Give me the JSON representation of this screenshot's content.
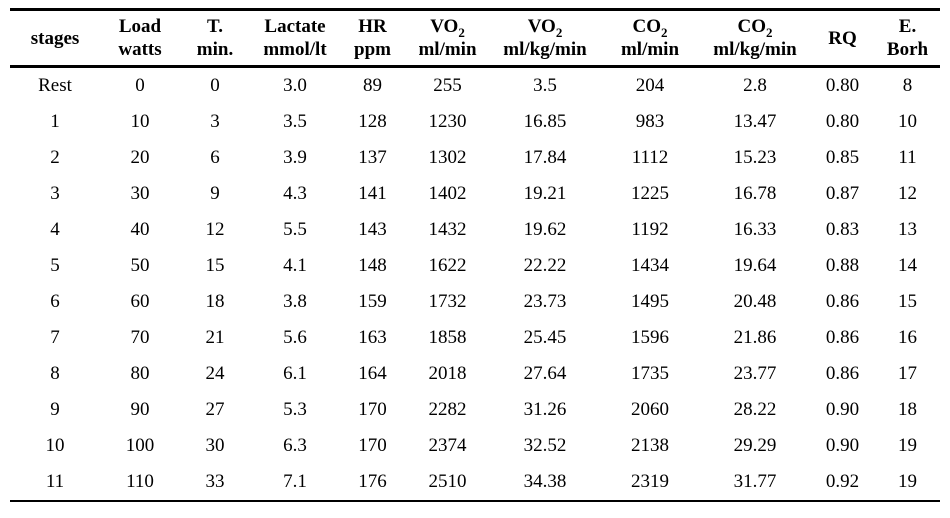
{
  "table": {
    "columns": [
      {
        "line1": "stages",
        "sub": "",
        "line2": ""
      },
      {
        "line1": "Load",
        "sub": "",
        "line2": "watts"
      },
      {
        "line1": "T.",
        "sub": "",
        "line2": "min."
      },
      {
        "line1": "Lactate",
        "sub": "",
        "line2": "mmol/lt"
      },
      {
        "line1": "HR",
        "sub": "",
        "line2": "ppm"
      },
      {
        "line1": "VO",
        "sub": "2",
        "line2": "ml/min"
      },
      {
        "line1": "VO",
        "sub": "2",
        "line2": "ml/kg/min"
      },
      {
        "line1": "CO",
        "sub": "2",
        "line2": "ml/min"
      },
      {
        "line1": "CO",
        "sub": "2",
        "line2": "ml/kg/min"
      },
      {
        "line1": "RQ",
        "sub": "",
        "line2": ""
      },
      {
        "line1": "E.",
        "sub": "",
        "line2": "Borh"
      }
    ],
    "rows": [
      {
        "stage": "Rest",
        "cells": [
          "0",
          "0",
          "3.0",
          "89",
          "255",
          "3.5",
          "204",
          "2.8",
          "0.80",
          "8"
        ]
      },
      {
        "stage": "1",
        "cells": [
          "10",
          "3",
          "3.5",
          "128",
          "1230",
          "16.85",
          "983",
          "13.47",
          "0.80",
          "10"
        ]
      },
      {
        "stage": "2",
        "cells": [
          "20",
          "6",
          "3.9",
          "137",
          "1302",
          "17.84",
          "1112",
          "15.23",
          "0.85",
          "11"
        ]
      },
      {
        "stage": "3",
        "cells": [
          "30",
          "9",
          "4.3",
          "141",
          "1402",
          "19.21",
          "1225",
          "16.78",
          "0.87",
          "12"
        ]
      },
      {
        "stage": "4",
        "cells": [
          "40",
          "12",
          "5.5",
          "143",
          "1432",
          "19.62",
          "1192",
          "16.33",
          "0.83",
          "13"
        ]
      },
      {
        "stage": "5",
        "cells": [
          "50",
          "15",
          "4.1",
          "148",
          "1622",
          "22.22",
          "1434",
          "19.64",
          "0.88",
          "14"
        ]
      },
      {
        "stage": "6",
        "cells": [
          "60",
          "18",
          "3.8",
          "159",
          "1732",
          "23.73",
          "1495",
          "20.48",
          "0.86",
          "15"
        ]
      },
      {
        "stage": "7",
        "cells": [
          "70",
          "21",
          "5.6",
          "163",
          "1858",
          "25.45",
          "1596",
          "21.86",
          "0.86",
          "16"
        ]
      },
      {
        "stage": "8",
        "cells": [
          "80",
          "24",
          "6.1",
          "164",
          "2018",
          "27.64",
          "1735",
          "23.77",
          "0.86",
          "17"
        ]
      },
      {
        "stage": "9",
        "cells": [
          "90",
          "27",
          "5.3",
          "170",
          "2282",
          "31.26",
          "2060",
          "28.22",
          "0.90",
          "18"
        ]
      },
      {
        "stage": "10",
        "cells": [
          "100",
          "30",
          "6.3",
          "170",
          "2374",
          "32.52",
          "2138",
          "29.29",
          "0.90",
          "19"
        ]
      },
      {
        "stage": "11",
        "cells": [
          "110",
          "33",
          "7.1",
          "176",
          "2510",
          "34.38",
          "2319",
          "31.77",
          "0.92",
          "19"
        ]
      }
    ]
  },
  "chart_data": {
    "type": "table",
    "title": "",
    "categories": [
      "Rest",
      "1",
      "2",
      "3",
      "4",
      "5",
      "6",
      "7",
      "8",
      "9",
      "10",
      "11"
    ],
    "series": [
      {
        "name": "Load watts",
        "values": [
          0,
          10,
          20,
          30,
          40,
          50,
          60,
          70,
          80,
          90,
          100,
          110
        ]
      },
      {
        "name": "T. min.",
        "values": [
          0,
          3,
          6,
          9,
          12,
          15,
          18,
          21,
          24,
          27,
          30,
          33
        ]
      },
      {
        "name": "Lactate mmol/lt",
        "values": [
          3.0,
          3.5,
          3.9,
          4.3,
          5.5,
          4.1,
          3.8,
          5.6,
          6.1,
          5.3,
          6.3,
          7.1
        ]
      },
      {
        "name": "HR ppm",
        "values": [
          89,
          128,
          137,
          141,
          143,
          148,
          159,
          163,
          164,
          170,
          170,
          176
        ]
      },
      {
        "name": "VO2 ml/min",
        "values": [
          255,
          1230,
          1302,
          1402,
          1432,
          1622,
          1732,
          1858,
          2018,
          2282,
          2374,
          2510
        ]
      },
      {
        "name": "VO2 ml/kg/min",
        "values": [
          3.5,
          16.85,
          17.84,
          19.21,
          19.62,
          22.22,
          23.73,
          25.45,
          27.64,
          31.26,
          32.52,
          34.38
        ]
      },
      {
        "name": "CO2 ml/min",
        "values": [
          204,
          983,
          1112,
          1225,
          1192,
          1434,
          1495,
          1596,
          1735,
          2060,
          2138,
          2319
        ]
      },
      {
        "name": "CO2 ml/kg/min",
        "values": [
          2.8,
          13.47,
          15.23,
          16.78,
          16.33,
          19.64,
          20.48,
          21.86,
          23.77,
          28.22,
          29.29,
          31.77
        ]
      },
      {
        "name": "RQ",
        "values": [
          0.8,
          0.8,
          0.85,
          0.87,
          0.83,
          0.88,
          0.86,
          0.86,
          0.86,
          0.9,
          0.9,
          0.92
        ]
      },
      {
        "name": "E. Borh",
        "values": [
          8,
          10,
          11,
          12,
          13,
          14,
          15,
          16,
          17,
          18,
          19,
          19
        ]
      }
    ]
  }
}
